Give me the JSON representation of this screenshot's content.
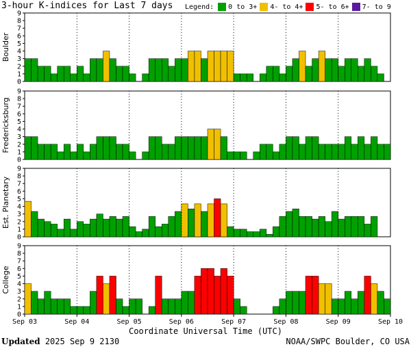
{
  "title": "3-hour K-indices for Last 7 days",
  "legend": {
    "label": "Legend:",
    "items": [
      {
        "label": "0 to 3+",
        "color": "#00a000"
      },
      {
        "label": "4- to 4+",
        "color": "#f0c000"
      },
      {
        "label": "5- to 6+",
        "color": "#ff0000"
      },
      {
        "label": "7- to 9",
        "color": "#5a1aa0"
      }
    ]
  },
  "footer": {
    "updated_label": "Updated",
    "updated_value": "2025 Sep  9 2130",
    "source": "NOAA/SWPC Boulder, CO USA"
  },
  "chart_data": {
    "type": "bar",
    "xlabel": "Coordinate Universal Time (UTC)",
    "x_tick_labels": [
      "Sep 03",
      "Sep 04",
      "Sep 05",
      "Sep 06",
      "Sep 07",
      "Sep 08",
      "Sep 09",
      "Sep 10"
    ],
    "ylim": [
      0,
      9
    ],
    "y_ticks": [
      "0",
      "1",
      "2",
      "3",
      "4",
      "5",
      "6",
      "7",
      "8",
      "9"
    ],
    "grid": true,
    "panels": [
      {
        "name": "Boulder",
        "values": [
          3,
          3,
          2,
          2,
          1,
          2,
          2,
          1,
          2,
          1,
          3,
          3,
          4,
          3,
          2,
          2,
          1,
          0,
          1,
          3,
          3,
          3,
          2,
          3,
          3,
          4,
          4,
          3,
          4,
          4,
          4,
          4,
          1,
          1,
          1,
          0,
          1,
          2,
          2,
          1,
          2,
          3,
          4,
          2,
          3,
          4,
          3,
          3,
          2,
          3,
          3,
          2,
          3,
          2,
          1,
          0
        ]
      },
      {
        "name": "Fredericksburg",
        "values": [
          3,
          3,
          2,
          2,
          2,
          1,
          2,
          1,
          2,
          1,
          2,
          3,
          3,
          3,
          2,
          2,
          1,
          0,
          1,
          3,
          3,
          2,
          2,
          3,
          3,
          3,
          3,
          3,
          4,
          4,
          3,
          1,
          1,
          1,
          0,
          1,
          2,
          2,
          1,
          2,
          3,
          3,
          2,
          3,
          3,
          2,
          2,
          2,
          2,
          3,
          2,
          3,
          2,
          3,
          2,
          2,
          0,
          0
        ]
      },
      {
        "name": "Est. Planetary",
        "values": [
          4.67,
          3.33,
          2.33,
          2,
          1.67,
          1,
          2.33,
          1,
          2,
          1.67,
          2.33,
          3,
          2.33,
          2.67,
          2.33,
          2.67,
          1.33,
          0.67,
          1,
          2.67,
          1.33,
          1.67,
          2.67,
          3.33,
          4.33,
          3.67,
          4.33,
          3.33,
          4.33,
          5,
          4.33,
          1.33,
          1,
          1,
          0.67,
          0.67,
          1,
          0.33,
          1.33,
          2.67,
          3.33,
          3.67,
          2.67,
          2.67,
          2.33,
          2.67,
          2,
          3.33,
          2.33,
          2.67,
          2.67,
          2.67,
          1.67,
          2.67
        ]
      },
      {
        "name": "College",
        "values": [
          4,
          3,
          2,
          3,
          2,
          2,
          2,
          1,
          1,
          1,
          3,
          5,
          4,
          5,
          2,
          1,
          2,
          2,
          0,
          1,
          5,
          2,
          2,
          2,
          3,
          3,
          5,
          6,
          6,
          5,
          6,
          5,
          2,
          1,
          0,
          0,
          0,
          0,
          1,
          2,
          3,
          3,
          3,
          5,
          5,
          4,
          4,
          2,
          2,
          3,
          2,
          3,
          5,
          4,
          3,
          2,
          0
        ]
      }
    ]
  }
}
